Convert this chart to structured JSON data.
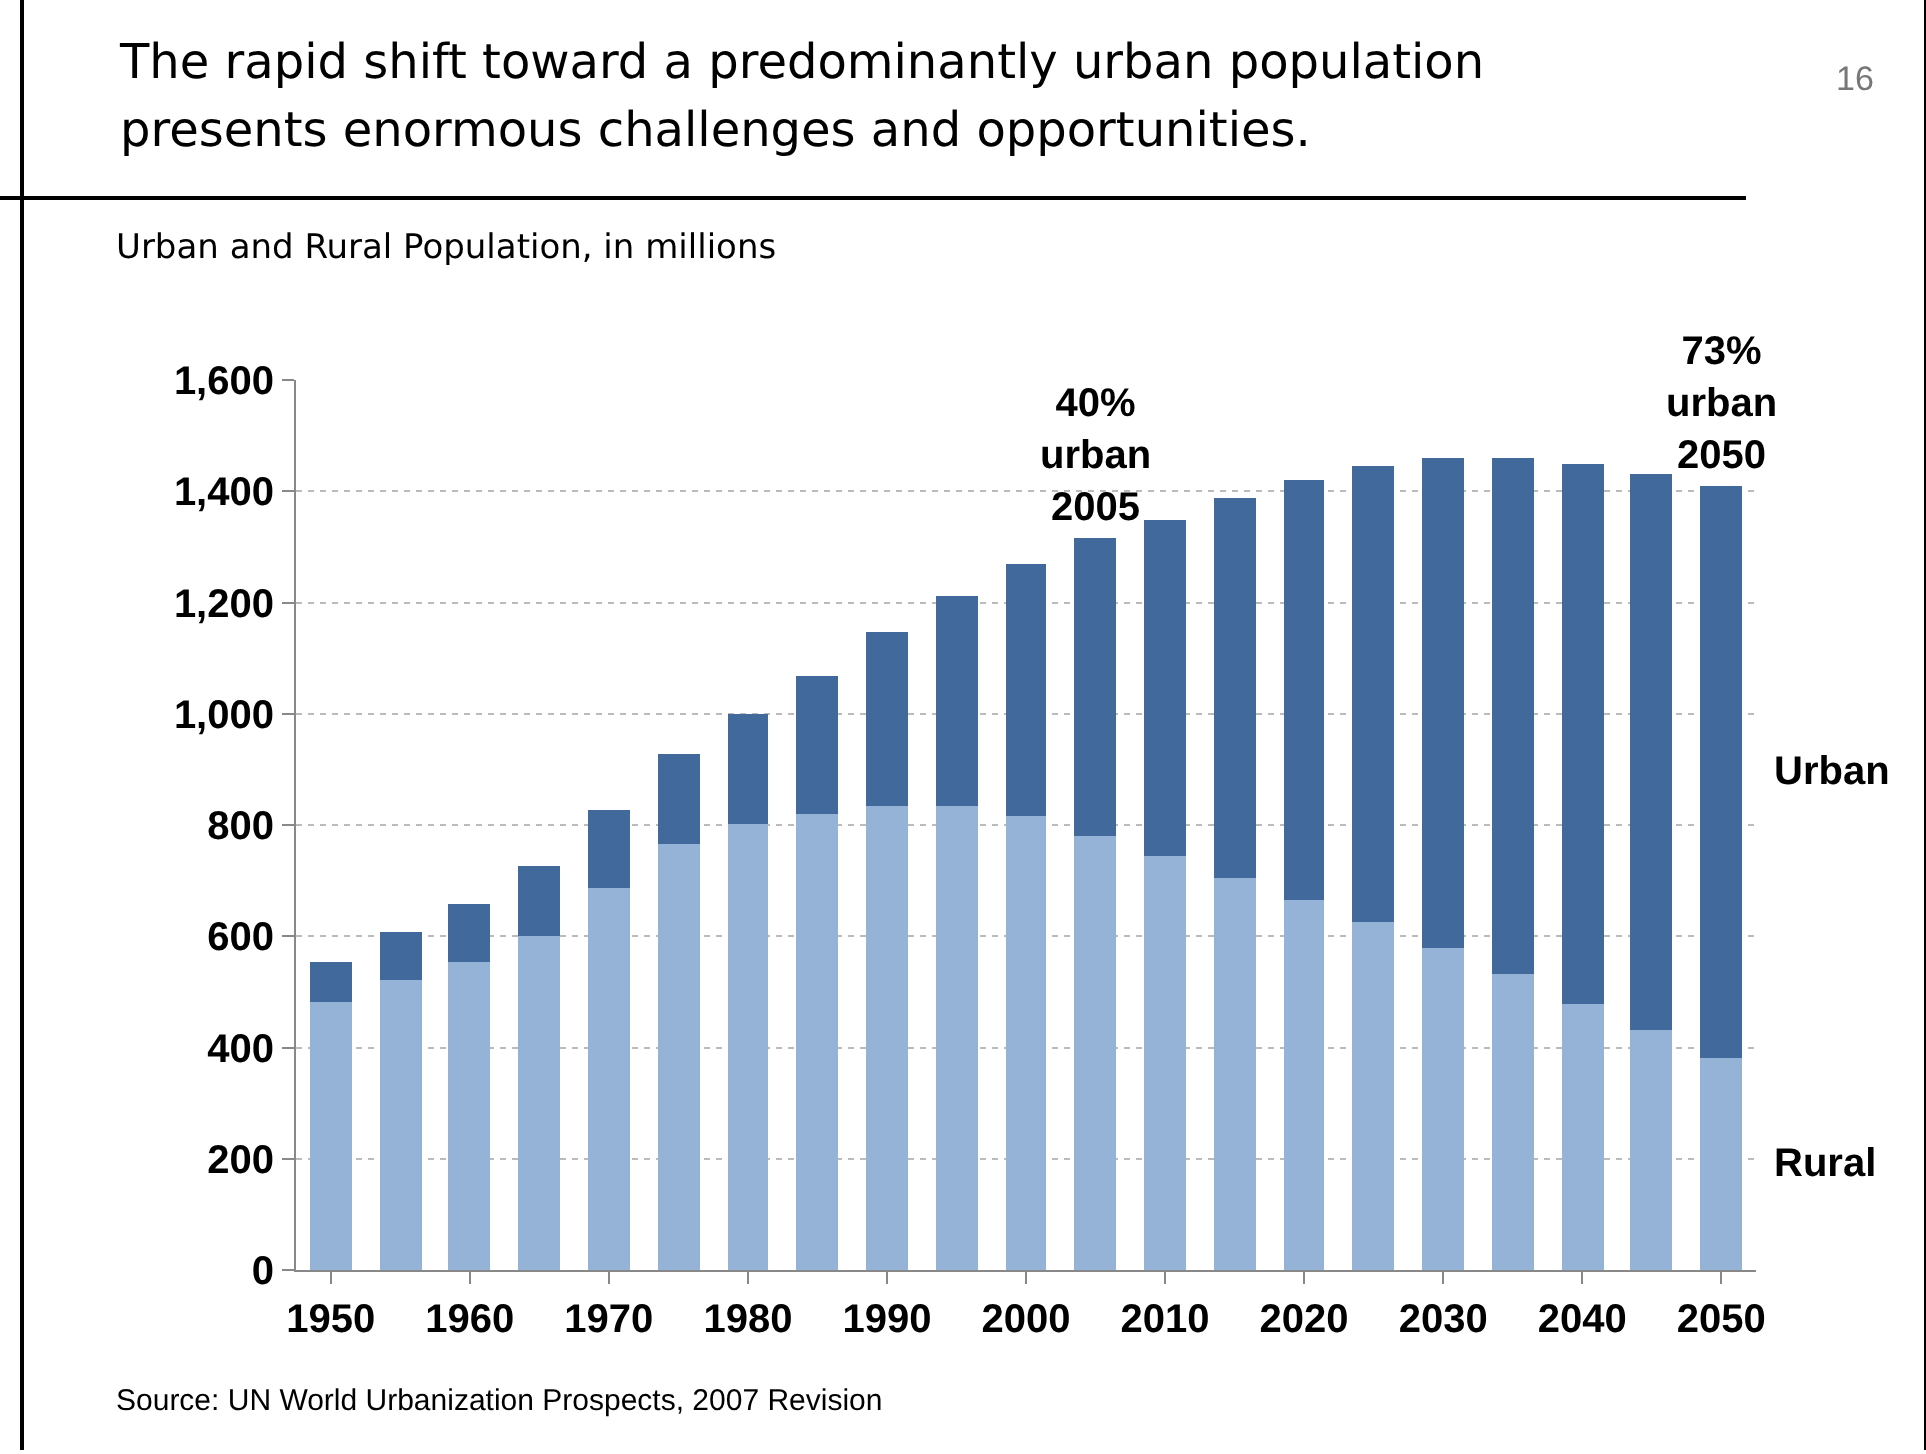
{
  "chart_data": {
    "type": "bar",
    "stacked": true,
    "title": "The rapid shift toward a predominantly urban population presents enormous challenges and opportunities.",
    "subtitle": "Urban and Rural Population, in millions",
    "x": [
      1950,
      1955,
      1960,
      1965,
      1970,
      1975,
      1980,
      1985,
      1990,
      1995,
      2000,
      2005,
      2010,
      2015,
      2020,
      2025,
      2030,
      2035,
      2040,
      2045,
      2050
    ],
    "series": [
      {
        "name": "Rural",
        "color": "#95b3d7",
        "values": [
          482,
          523,
          553,
          600,
          687,
          765,
          802,
          820,
          833,
          833,
          815,
          780,
          745,
          705,
          665,
          625,
          580,
          532,
          480,
          430,
          382
        ]
      },
      {
        "name": "Urban",
        "color": "#41699c",
        "values": [
          73,
          85,
          104,
          128,
          141,
          162,
          196,
          248,
          315,
          379,
          455,
          535,
          605,
          683,
          755,
          820,
          878,
          926,
          968,
          1002,
          1026
        ]
      }
    ],
    "xlim": [
      1947.5,
      2052.5
    ],
    "xticks": [
      1950,
      1960,
      1970,
      1980,
      1990,
      2000,
      2010,
      2020,
      2030,
      2040,
      2050
    ],
    "ylim": [
      0,
      1600
    ],
    "yticks": [
      0,
      200,
      400,
      600,
      800,
      {
        "value": 1000,
        "label": "1,000"
      },
      {
        "value": 1200,
        "label": "1,200"
      },
      {
        "value": 1400,
        "label": "1,400"
      },
      {
        "value": 1600,
        "label": "1,600"
      }
    ],
    "grid": "y",
    "legend": false,
    "annotations": [
      {
        "text": "40%\nurban\n2005",
        "x": 2005,
        "y": 1315
      },
      {
        "text": "73%\nurban\n2050",
        "x": 2050,
        "y": 1408
      },
      "16",
      "Source: UN World Urbanization Prospects, 2007 Revision"
    ]
  }
}
